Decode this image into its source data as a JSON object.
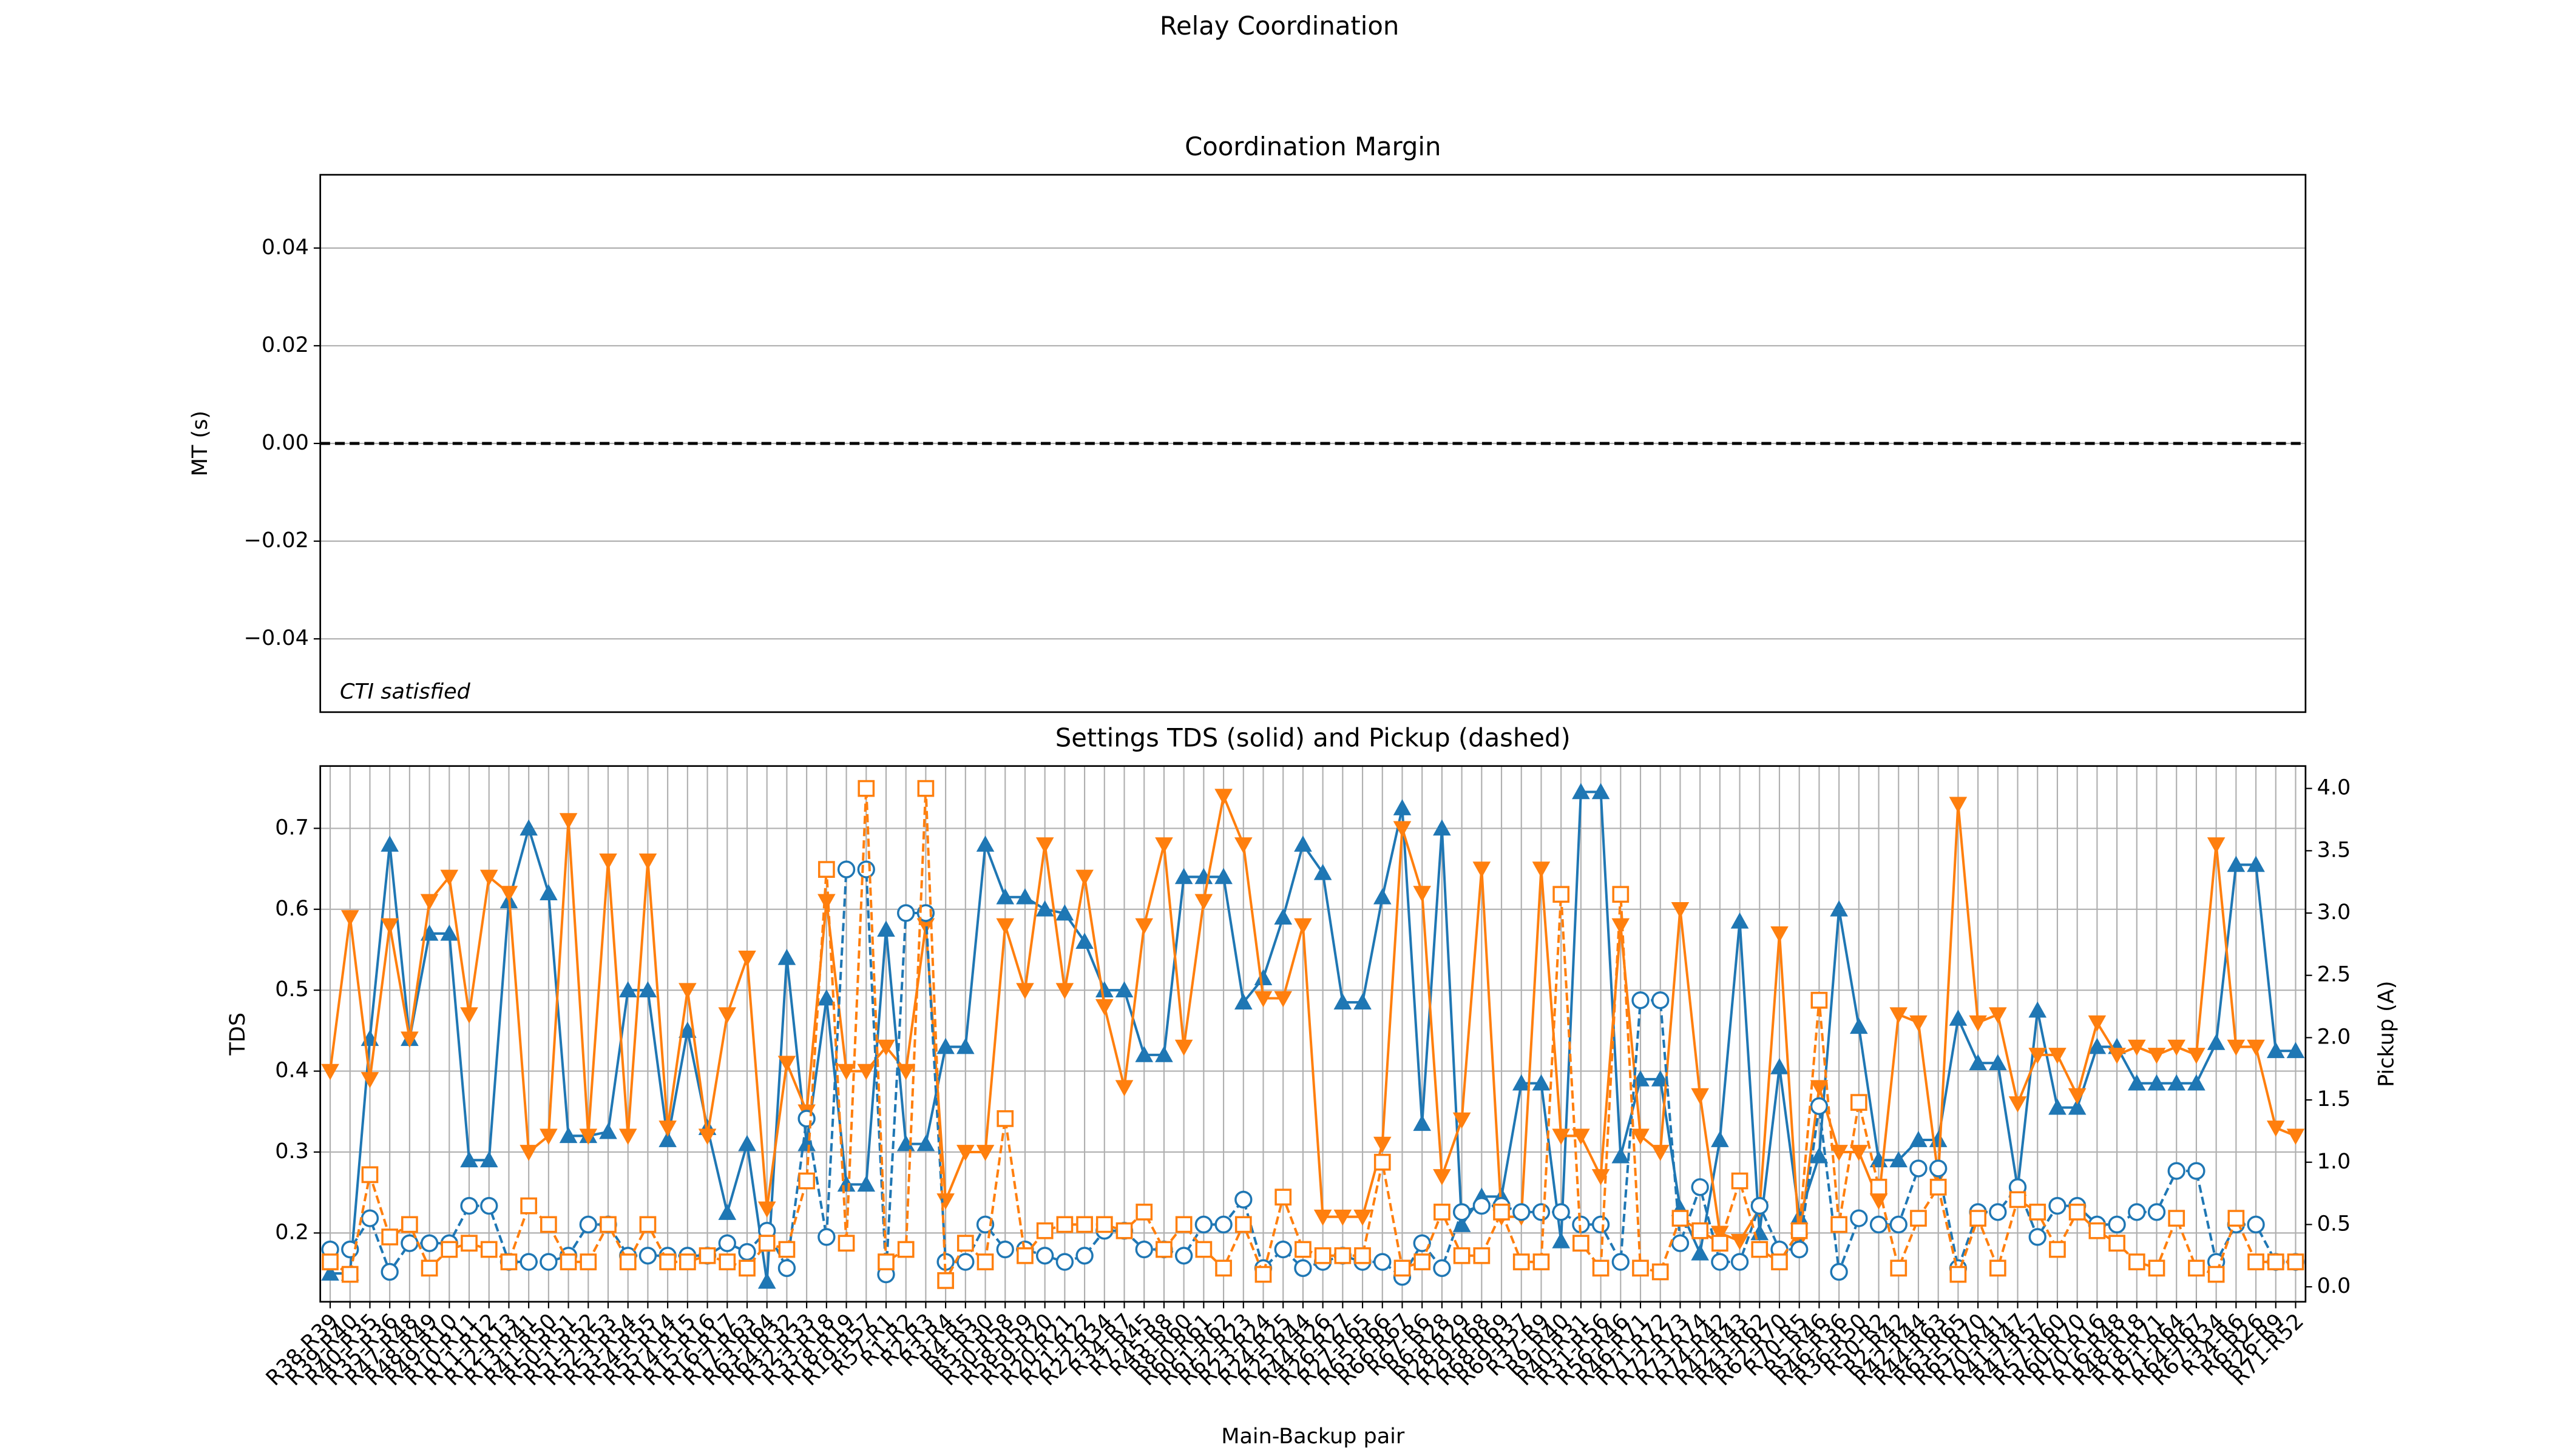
{
  "title": "Relay Coordination",
  "chart_data": [
    {
      "type": "line",
      "title": "Coordination Margin",
      "ylabel": "MT (s)",
      "ylim": [
        -0.055,
        0.055
      ],
      "yticks": [
        {
          "value": -0.04,
          "label": "−0.04"
        },
        {
          "value": -0.02,
          "label": "−0.02"
        },
        {
          "value": 0,
          "label": "0.00"
        },
        {
          "value": 0.02,
          "label": "0.02"
        },
        {
          "value": 0.04,
          "label": "0.04"
        }
      ],
      "hline": 0,
      "annotation": "CTI satisfied",
      "grid": "y"
    },
    {
      "type": "line",
      "title": "Settings TDS (solid) and Pickup (dashed)",
      "xlabel": "Main-Backup pair",
      "ylabel": "TDS",
      "y2label": "Pickup (A)",
      "categories": [
        "R38-R39",
        "R39-R40",
        "R40-R35",
        "R35-R36",
        "R47-R48",
        "R48-R49",
        "R49-R10",
        "R10-R11",
        "R11-R12",
        "R12-R13",
        "R13-R41",
        "R41-R50",
        "R50-R51",
        "R51-R52",
        "R52-R53",
        "R53-R54",
        "R54-R55",
        "R55-R14",
        "R14-R15",
        "R15-R16",
        "R16-R17",
        "R17-R63",
        "R63-R64",
        "R64-R32",
        "R32-R33",
        "R33-R18",
        "R18-R19",
        "R19-R57",
        "R57-R1",
        "R1-R2",
        "R2-R3",
        "R3-R4",
        "R4-R5",
        "R5-R30",
        "R30-R58",
        "R58-R59",
        "R59-R20",
        "R20-R21",
        "R21-R22",
        "R22-R34",
        "R34-R7",
        "R7-R45",
        "R45-R8",
        "R8-R60",
        "R60-R61",
        "R61-R62",
        "R62-R23",
        "R23-R24",
        "R24-R25",
        "R25-R44",
        "R44-R26",
        "R26-R27",
        "R27-R65",
        "R65-R66",
        "R66-R67",
        "R67-R6",
        "R6-R28",
        "R28-R29",
        "R29-R68",
        "R68-R69",
        "R69-R37",
        "R37-R9",
        "R9-R40",
        "R40-R31",
        "R31-R56",
        "R56-R46",
        "R46-R71",
        "R71-R72",
        "R72-R73",
        "R73-R74",
        "R74-R42",
        "R42-R43",
        "R43-R62",
        "R62-R70",
        "R70-R5",
        "R5-R46",
        "R46-R36",
        "R36-R50",
        "R50-R2",
        "R2-R42",
        "R42-R44",
        "R44-R63",
        "R63-R65",
        "R65-R70",
        "R70-R41",
        "R41-R47",
        "R47-R57",
        "R57-R60",
        "R60-R70",
        "R70-R16",
        "R16-R48",
        "R48-R18",
        "R18-R71",
        "R71-R64",
        "R64-R67",
        "R67-R34",
        "R34-R6",
        "R6-R26",
        "R26-R9",
        "R71-R52"
      ],
      "ylim": [
        0.115,
        0.777
      ],
      "yticks": [
        0.2,
        0.3,
        0.4,
        0.5,
        0.6,
        0.7
      ],
      "y2lim": [
        -0.12,
        4.18
      ],
      "y2ticks": [
        {
          "value": 0,
          "label": "0.0"
        },
        0.5,
        {
          "value": 1,
          "label": "1.0"
        },
        1.5,
        {
          "value": 2,
          "label": "2.0"
        },
        2.5,
        {
          "value": 3,
          "label": "3.0"
        },
        3.5,
        {
          "value": 4,
          "label": "4.0"
        }
      ],
      "grid": true,
      "series": [
        {
          "color": "#1f77b4",
          "marker": "^",
          "dashed": false,
          "axis": "y",
          "values": [
            0.15,
            0.15,
            0.44,
            0.68,
            0.44,
            0.57,
            0.57,
            0.29,
            0.29,
            0.61,
            0.7,
            0.62,
            0.32,
            0.32,
            0.325,
            0.5,
            0.5,
            0.315,
            0.45,
            0.33,
            0.225,
            0.31,
            0.14,
            0.54,
            0.31,
            0.49,
            0.26,
            0.26,
            0.575,
            0.31,
            0.31,
            0.43,
            0.43,
            0.68,
            0.615,
            0.615,
            0.6,
            0.595,
            0.56,
            0.5,
            0.5,
            0.42,
            0.42,
            0.64,
            0.64,
            0.64,
            0.485,
            0.515,
            0.59,
            0.68,
            0.645,
            0.485,
            0.485,
            0.615,
            0.725,
            0.335,
            0.7,
            0.21,
            0.245,
            0.245,
            0.385,
            0.385,
            0.19,
            0.745,
            0.745,
            0.295,
            0.39,
            0.39,
            0.23,
            0.175,
            0.315,
            0.585,
            0.2,
            0.405,
            0.22,
            0.295,
            0.6,
            0.455,
            0.29,
            0.29,
            0.315,
            0.315,
            0.465,
            0.41,
            0.41,
            0.255,
            0.475,
            0.355,
            0.355,
            0.43,
            0.43,
            0.385,
            0.385,
            0.385,
            0.385,
            0.435,
            0.655,
            0.655,
            0.425,
            0.425
          ]
        },
        {
          "color": "#ff7f0e",
          "marker": "v",
          "dashed": false,
          "axis": "y",
          "values": [
            0.4,
            0.59,
            0.39,
            0.58,
            0.44,
            0.61,
            0.64,
            0.47,
            0.64,
            0.62,
            0.3,
            0.32,
            0.71,
            0.32,
            0.66,
            0.32,
            0.66,
            0.33,
            0.5,
            0.32,
            0.47,
            0.54,
            0.23,
            0.41,
            0.35,
            0.61,
            0.4,
            0.4,
            0.43,
            0.4,
            0.58,
            0.24,
            0.3,
            0.3,
            0.58,
            0.5,
            0.68,
            0.5,
            0.64,
            0.48,
            0.38,
            0.58,
            0.68,
            0.43,
            0.61,
            0.74,
            0.68,
            0.49,
            0.49,
            0.58,
            0.22,
            0.22,
            0.22,
            0.31,
            0.7,
            0.62,
            0.27,
            0.34,
            0.65,
            0.22,
            0.22,
            0.65,
            0.32,
            0.32,
            0.27,
            0.58,
            0.32,
            0.3,
            0.6,
            0.37,
            0.2,
            0.19,
            0.23,
            0.57,
            0.19,
            0.38,
            0.3,
            0.3,
            0.24,
            0.47,
            0.46,
            0.27,
            0.73,
            0.46,
            0.47,
            0.36,
            0.42,
            0.42,
            0.37,
            0.46,
            0.42,
            0.43,
            0.42,
            0.43,
            0.42,
            0.68,
            0.43,
            0.43,
            0.33,
            0.32
          ]
        },
        {
          "color": "#1f77b4",
          "marker": "o",
          "dashed": true,
          "axis": "y2",
          "values": [
            0.3,
            0.3,
            0.55,
            0.12,
            0.35,
            0.35,
            0.35,
            0.65,
            0.65,
            0.2,
            0.2,
            0.2,
            0.25,
            0.5,
            0.5,
            0.25,
            0.25,
            0.25,
            0.25,
            0.25,
            0.35,
            0.28,
            0.45,
            0.15,
            1.35,
            0.4,
            3.35,
            3.35,
            0.1,
            3.0,
            3.0,
            0.2,
            0.2,
            0.5,
            0.3,
            0.3,
            0.25,
            0.2,
            0.25,
            0.45,
            0.45,
            0.3,
            0.3,
            0.25,
            0.5,
            0.5,
            0.7,
            0.15,
            0.3,
            0.15,
            0.2,
            0.25,
            0.2,
            0.2,
            0.08,
            0.35,
            0.15,
            0.6,
            0.65,
            0.65,
            0.6,
            0.6,
            0.6,
            0.5,
            0.5,
            0.2,
            2.3,
            2.3,
            0.35,
            0.8,
            0.2,
            0.2,
            0.65,
            0.3,
            0.3,
            1.45,
            0.12,
            0.55,
            0.5,
            0.5,
            0.95,
            0.95,
            0.15,
            0.6,
            0.6,
            0.8,
            0.4,
            0.65,
            0.65,
            0.5,
            0.5,
            0.6,
            0.6,
            0.93,
            0.93,
            0.2,
            0.5,
            0.5,
            0.2,
            0.2
          ]
        },
        {
          "color": "#ff7f0e",
          "marker": "s",
          "dashed": true,
          "axis": "y2",
          "values": [
            0.2,
            0.1,
            0.9,
            0.4,
            0.5,
            0.15,
            0.3,
            0.35,
            0.3,
            0.2,
            0.65,
            0.5,
            0.2,
            0.2,
            0.5,
            0.2,
            0.5,
            0.2,
            0.2,
            0.25,
            0.2,
            0.15,
            0.35,
            0.3,
            0.85,
            3.35,
            0.35,
            4.0,
            0.2,
            0.3,
            4.0,
            0.05,
            0.35,
            0.2,
            1.35,
            0.25,
            0.45,
            0.5,
            0.5,
            0.5,
            0.45,
            0.6,
            0.3,
            0.5,
            0.3,
            0.15,
            0.5,
            0.1,
            0.72,
            0.3,
            0.25,
            0.25,
            0.25,
            1.0,
            0.15,
            0.2,
            0.6,
            0.25,
            0.25,
            0.6,
            0.2,
            0.2,
            3.15,
            0.35,
            0.15,
            3.15,
            0.15,
            0.12,
            0.55,
            0.45,
            0.35,
            0.85,
            0.3,
            0.2,
            0.45,
            2.3,
            0.5,
            1.48,
            0.8,
            0.15,
            0.55,
            0.8,
            0.1,
            0.55,
            0.15,
            0.7,
            0.6,
            0.3,
            0.6,
            0.45,
            0.35,
            0.2,
            0.15,
            0.55,
            0.15,
            0.1,
            0.55,
            0.2,
            0.2,
            0.2
          ]
        }
      ]
    }
  ]
}
